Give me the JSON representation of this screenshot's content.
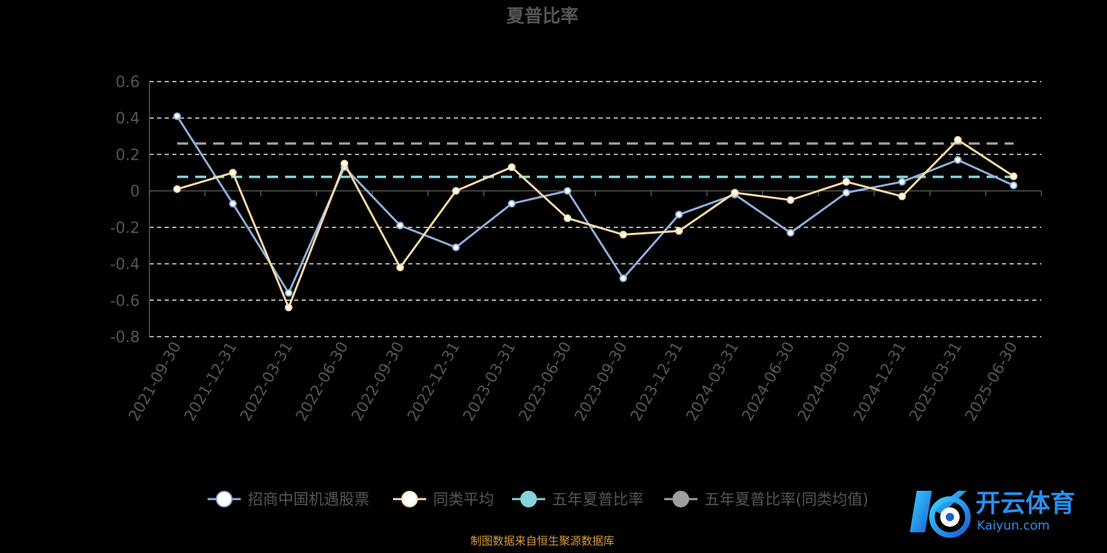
{
  "chart_data": {
    "type": "line",
    "title": "夏普比率",
    "categories": [
      "2021-09-30",
      "2021-12-31",
      "2022-03-31",
      "2022-06-30",
      "2022-09-30",
      "2022-12-31",
      "2023-03-31",
      "2023-06-30",
      "2023-09-30",
      "2023-12-31",
      "2024-03-31",
      "2024-06-30",
      "2024-09-30",
      "2024-12-31",
      "2025-03-31",
      "2025-06-30"
    ],
    "ylim": [
      -0.8,
      0.6
    ],
    "yticks": [
      "0.6",
      "0.4",
      "0.2",
      "0",
      "-0.2",
      "-0.4",
      "-0.6",
      "-0.8"
    ],
    "yticks_values": [
      0.6,
      0.4,
      0.2,
      0,
      -0.2,
      -0.4,
      -0.6,
      -0.8
    ],
    "grid": true,
    "legend_position": "bottom-center",
    "series": [
      {
        "name": "招商中国机遇股票",
        "color": "#8fb0dd",
        "values": [
          0.41,
          -0.07,
          -0.56,
          0.13,
          -0.19,
          -0.31,
          -0.07,
          0.0,
          -0.48,
          -0.13,
          -0.02,
          -0.23,
          -0.01,
          0.05,
          0.17,
          0.03
        ]
      },
      {
        "name": "同类平均",
        "color": "#fbdca7",
        "values": [
          0.01,
          0.1,
          -0.64,
          0.15,
          -0.42,
          0.0,
          0.13,
          -0.15,
          -0.24,
          -0.22,
          -0.01,
          -0.05,
          0.05,
          -0.03,
          0.28,
          0.08
        ]
      },
      {
        "name": "五年夏普比率",
        "color": "#86d3d9",
        "constant": 0.077
      },
      {
        "name": "五年夏普比率(同类均值)",
        "color": "#9e9e9e",
        "constant": 0.26
      }
    ]
  },
  "source_note": "制图数据来自恒生聚源数据库",
  "logo": {
    "name": "开云体育",
    "domain": "Kaiyun.com"
  }
}
